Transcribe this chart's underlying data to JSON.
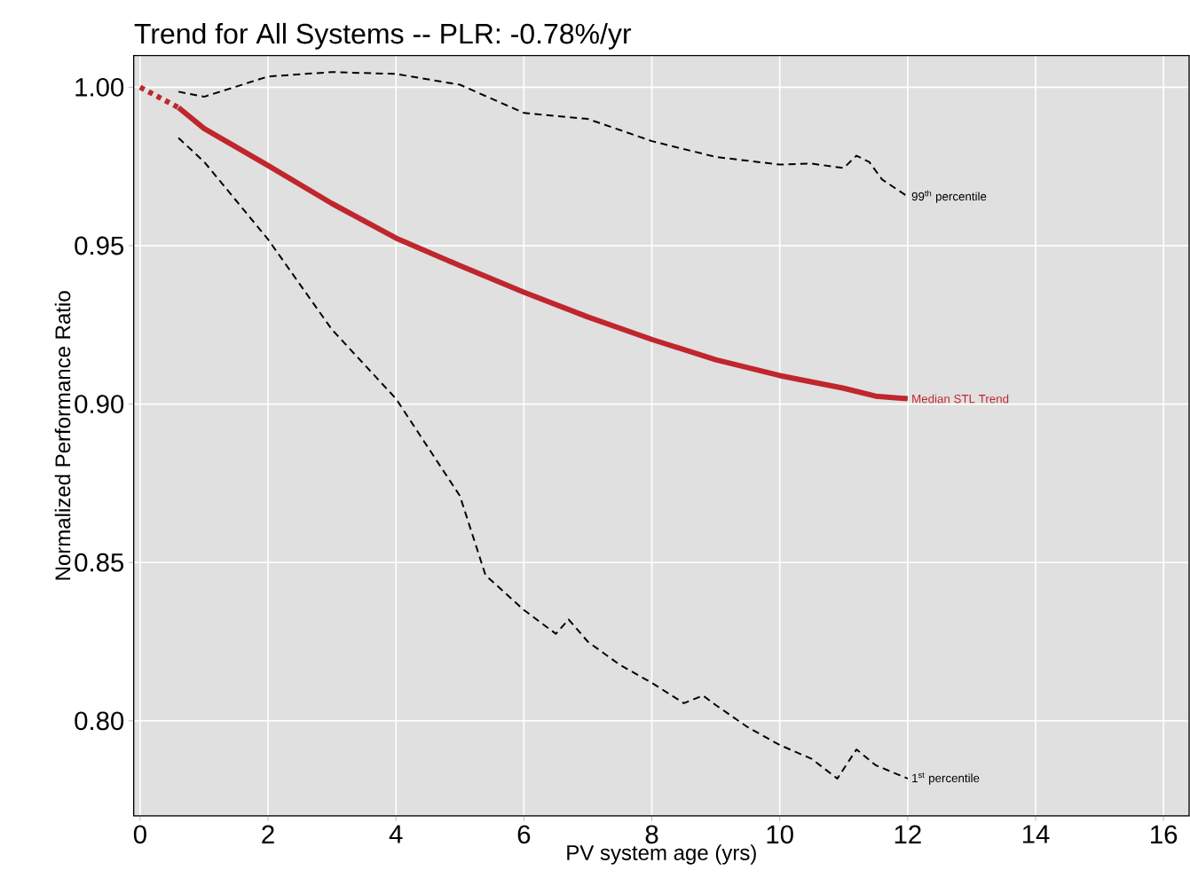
{
  "chart_data": {
    "type": "line",
    "title": "Trend for All Systems -- PLR: -0.78%/yr",
    "xlabel": "PV system age (yrs)",
    "ylabel": "Normalized Performance Ratio",
    "xlim": [
      -0.1,
      16.4
    ],
    "ylim": [
      0.77,
      1.01
    ],
    "xticks": [
      0,
      2,
      4,
      6,
      8,
      10,
      12,
      14,
      16
    ],
    "yticks": [
      {
        "value": 0.8,
        "label": "0.80"
      },
      {
        "value": 0.85,
        "label": "0.85"
      },
      {
        "value": 0.9,
        "label": "0.90"
      },
      {
        "value": 0.95,
        "label": "0.95"
      },
      {
        "value": 1.0,
        "label": "1.00"
      }
    ],
    "grid": true,
    "series": [
      {
        "color": "#c0262d",
        "line_style": "dotted",
        "x": [
          0,
          0.6
        ],
        "values": [
          1.0,
          0.9936
        ]
      },
      {
        "name": "Median STL Trend",
        "color": "#c0262d",
        "line_style": "solid",
        "x": [
          0.6,
          1,
          2,
          3,
          4,
          5,
          6,
          7,
          8,
          9,
          10,
          11,
          11.5,
          12
        ],
        "values": [
          0.9936,
          0.987,
          0.9753,
          0.9633,
          0.9524,
          0.9437,
          0.9353,
          0.9275,
          0.9204,
          0.914,
          0.909,
          0.905,
          0.9025,
          0.9017
        ]
      },
      {
        "name": "99$^{th}$ percentile",
        "color": "#000000",
        "line_style": "dashed",
        "x": [
          0.6,
          1,
          2,
          3,
          4,
          5,
          6,
          7,
          8,
          9,
          10,
          10.5,
          11,
          11.2,
          11.4,
          11.6,
          12
        ],
        "values": [
          0.9986,
          0.997,
          1.0034,
          1.0048,
          1.0042,
          1.0008,
          0.9919,
          0.99,
          0.983,
          0.978,
          0.9756,
          0.9759,
          0.9745,
          0.9784,
          0.9764,
          0.9709,
          0.9655
        ]
      },
      {
        "name": "1$^{st}$ percentile",
        "color": "#000000",
        "line_style": "dashed",
        "x": [
          0.6,
          1,
          2,
          3,
          4,
          5,
          5.4,
          6,
          6.5,
          6.7,
          7,
          7.5,
          8,
          8.5,
          8.8,
          9,
          9.5,
          10,
          10.5,
          10.9,
          11.2,
          11.5,
          12
        ],
        "values": [
          0.984,
          0.9765,
          0.952,
          0.9235,
          0.9017,
          0.871,
          0.846,
          0.835,
          0.8275,
          0.832,
          0.825,
          0.8177,
          0.812,
          0.8056,
          0.808,
          0.805,
          0.798,
          0.7924,
          0.788,
          0.7818,
          0.791,
          0.786,
          0.7818
        ]
      }
    ]
  }
}
